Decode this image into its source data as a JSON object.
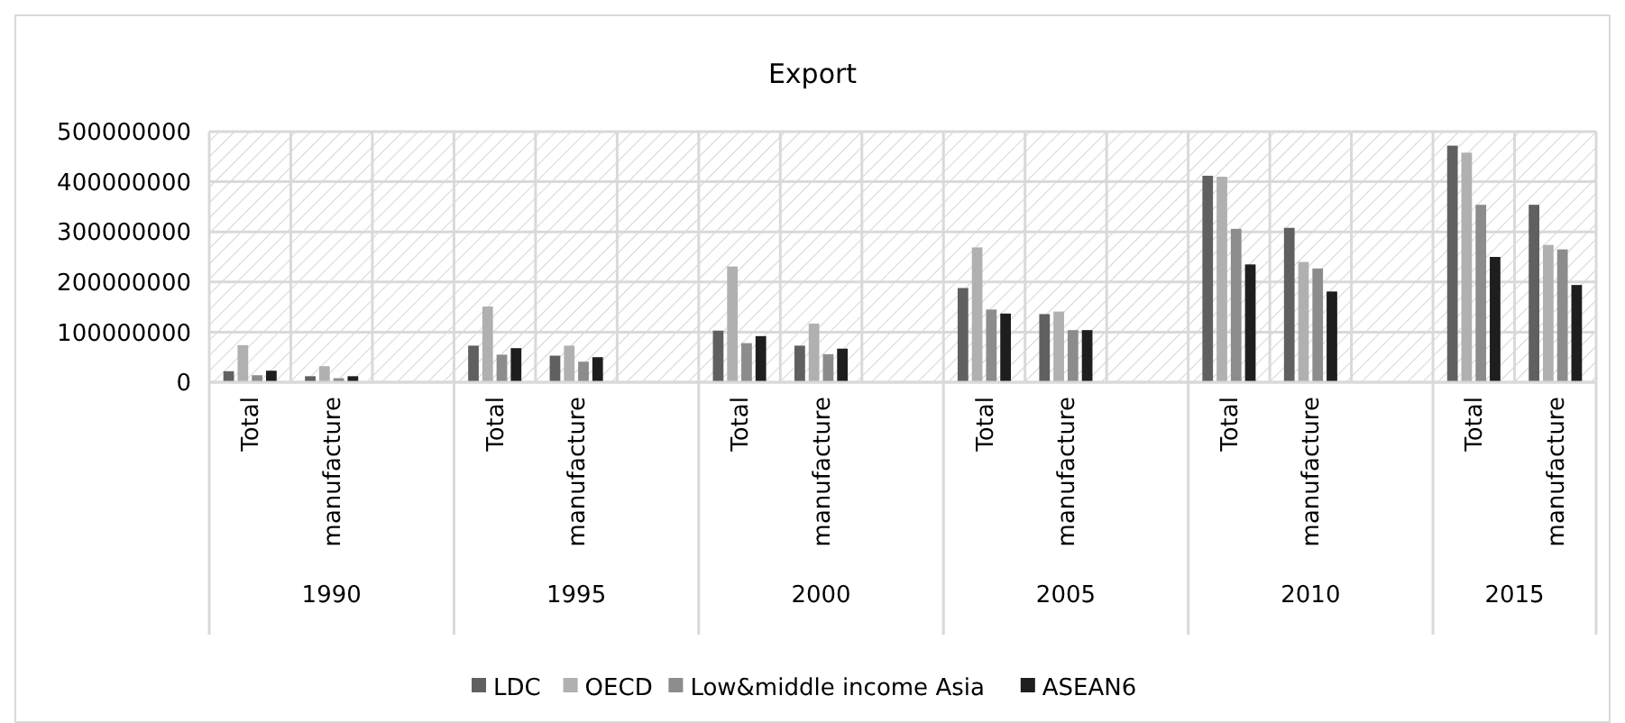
{
  "chart_data": {
    "type": "bar",
    "title": "Export",
    "categories": [
      "Total",
      "manufacture",
      null,
      "Total",
      "manufacture",
      null,
      "Total",
      "manufacture",
      null,
      "Total",
      "manufacture",
      null,
      "Total",
      "manufacture",
      null,
      "Total",
      "manufacture"
    ],
    "annotations": [
      "1990",
      "1995",
      "2000",
      "2005",
      "2010",
      "2015"
    ],
    "series": [
      {
        "name": "LDC",
        "color": "#606060",
        "values": [
          22000000,
          12000000,
          null,
          73000000,
          53000000,
          null,
          103000000,
          73000000,
          null,
          188000000,
          136000000,
          null,
          412000000,
          308000000,
          null,
          472000000,
          354000000
        ]
      },
      {
        "name": "OECD",
        "color": "#b0b0b0",
        "values": [
          74000000,
          32000000,
          null,
          151000000,
          73000000,
          null,
          231000000,
          117000000,
          null,
          269000000,
          141000000,
          null,
          410000000,
          240000000,
          null,
          458000000,
          274000000
        ]
      },
      {
        "name": "Low&middle income Asia",
        "color": "#8c8c8c",
        "values": [
          14000000,
          8000000,
          null,
          55000000,
          41000000,
          null,
          78000000,
          56000000,
          null,
          145000000,
          104000000,
          null,
          306000000,
          227000000,
          null,
          354000000,
          265000000
        ]
      },
      {
        "name": "ASEAN6",
        "color": "#1e1e1e",
        "values": [
          23000000,
          12000000,
          null,
          68000000,
          50000000,
          null,
          92000000,
          67000000,
          null,
          137000000,
          104000000,
          null,
          235000000,
          181000000,
          null,
          250000000,
          194000000
        ]
      }
    ],
    "ylim": [
      0,
      500000000
    ],
    "yticks": [
      0,
      100000000,
      200000000,
      300000000,
      400000000,
      500000000
    ],
    "grid": true,
    "legend": "bottom"
  }
}
